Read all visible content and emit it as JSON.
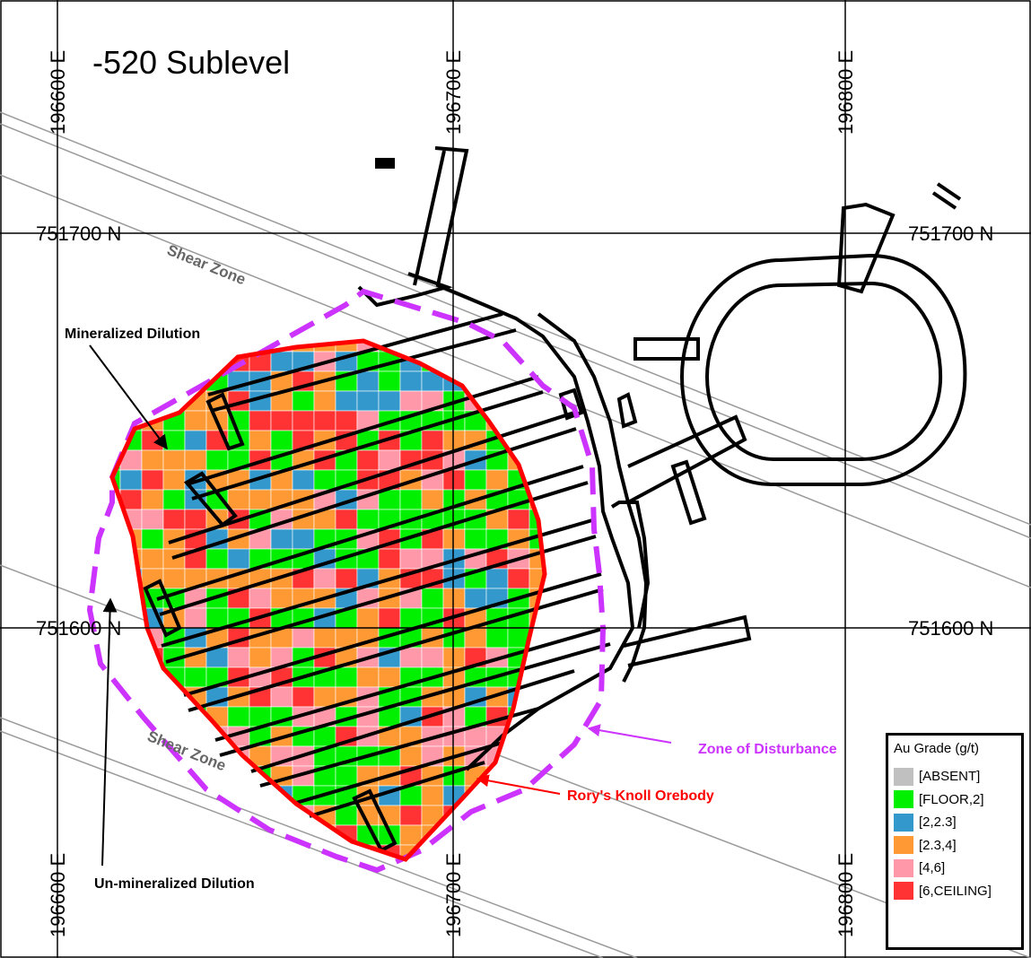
{
  "title": "-520 Sublevel",
  "grid_labels": {
    "easting": [
      "196600 E",
      "196700 E",
      "196800 E"
    ],
    "northing": [
      "751700 N",
      "751600 N"
    ]
  },
  "annotations": {
    "shear_zone": "Shear Zone",
    "mineralized_dilution": "Mineralized Dilution",
    "unmineralized_dilution": "Un-mineralized Dilution",
    "zone_of_disturbance": "Zone of Disturbance",
    "orebody": "Rory's Knoll Orebody"
  },
  "colors": {
    "zone_of_disturbance": "#cc33ff",
    "orebody_outline": "#ff0000",
    "development": "#000000",
    "grid": "#000000",
    "shear_zone": "#9a9a9a"
  },
  "legend": {
    "title": "Au Grade (g/t)",
    "items": [
      {
        "label": "[ABSENT]",
        "color": "#c0c0c0"
      },
      {
        "label": "[FLOOR,2]",
        "color": "#00f000"
      },
      {
        "label": "[2,2.3]",
        "color": "#3399cc"
      },
      {
        "label": "[2.3,4]",
        "color": "#ff9933"
      },
      {
        "label": "[4,6]",
        "color": "#ff99aa"
      },
      {
        "label": "[6,CEILING]",
        "color": "#ff3333"
      }
    ]
  }
}
